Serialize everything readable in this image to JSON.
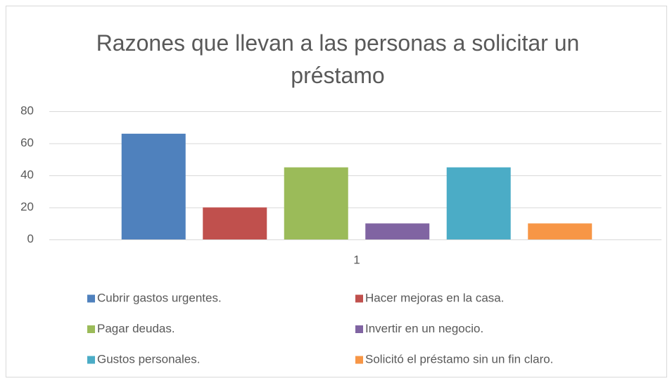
{
  "chart_data": {
    "type": "bar",
    "title": "Razones que llevan a las personas a solicitar un préstamo",
    "categories": [
      "1"
    ],
    "series": [
      {
        "name": "Cubrir gastos urgentes.",
        "color": "#4f81bd",
        "values": [
          66
        ]
      },
      {
        "name": "Hacer mejoras en la casa.",
        "color": "#c0504d",
        "values": [
          20
        ]
      },
      {
        "name": "Pagar deudas.",
        "color": "#9bbb59",
        "values": [
          45
        ]
      },
      {
        "name": "Invertir en un negocio.",
        "color": "#8064a2",
        "values": [
          10
        ]
      },
      {
        "name": "Gustos personales.",
        "color": "#4bacc6",
        "values": [
          45
        ]
      },
      {
        "name": "Solicitó el préstamo sin un fin claro.",
        "color": "#f79646",
        "values": [
          10
        ]
      }
    ],
    "ylim": [
      0,
      80
    ],
    "yticks": [
      0,
      20,
      40,
      60,
      80
    ],
    "grid": true,
    "legend": "bottom"
  }
}
